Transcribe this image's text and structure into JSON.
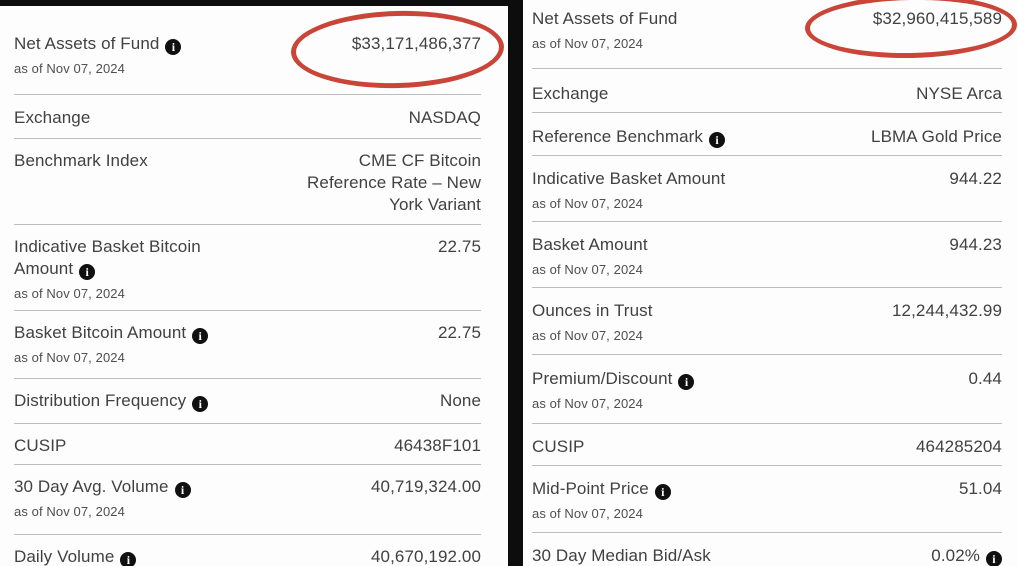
{
  "colors": {
    "annotation_red": "#c94537",
    "divider_black": "#0d0d0d",
    "rule_gray": "#bdbdbd",
    "text_dark": "#414143"
  },
  "panels": [
    {
      "name": "bitcoin-fund-facts",
      "rows": [
        {
          "label": "Net Assets of Fund",
          "info": true,
          "asof": "as of Nov 07, 2024",
          "value_lines": [
            "$33,171,486,377"
          ],
          "circled": true
        },
        {
          "label": "Exchange",
          "info": false,
          "asof": "",
          "value_lines": [
            "NASDAQ"
          ]
        },
        {
          "label": "Benchmark Index",
          "info": false,
          "asof": "",
          "value_lines": [
            "CME CF Bitcoin",
            "Reference Rate – New",
            "York Variant"
          ]
        },
        {
          "label": "Indicative Basket Bitcoin Amount",
          "info": true,
          "asof": "as of Nov 07, 2024",
          "value_lines": [
            "22.75"
          ]
        },
        {
          "label": "Basket Bitcoin Amount",
          "info": true,
          "asof": "as of Nov 07, 2024",
          "value_lines": [
            "22.75"
          ]
        },
        {
          "label": "Distribution Frequency",
          "info": true,
          "asof": "",
          "value_lines": [
            "None"
          ]
        },
        {
          "label": "CUSIP",
          "info": false,
          "asof": "",
          "value_lines": [
            "46438F101"
          ]
        },
        {
          "label": "30 Day Avg. Volume",
          "info": true,
          "asof": "as of Nov 07, 2024",
          "value_lines": [
            "40,719,324.00"
          ]
        },
        {
          "label": "Daily Volume",
          "info": true,
          "asof": "",
          "value_lines": [
            "40,670,192.00"
          ],
          "last": true
        }
      ]
    },
    {
      "name": "gold-fund-facts",
      "rows": [
        {
          "label": "Net Assets of Fund",
          "info": false,
          "asof": "as of Nov 07, 2024",
          "value_lines": [
            "$32,960,415,589"
          ],
          "circled": true
        },
        {
          "label": "Exchange",
          "info": false,
          "asof": "",
          "value_lines": [
            "NYSE Arca"
          ]
        },
        {
          "label": "Reference Benchmark",
          "info": true,
          "asof": "",
          "value_lines": [
            "LBMA Gold Price"
          ]
        },
        {
          "label": "Indicative Basket Amount",
          "info": false,
          "asof": "as of Nov 07, 2024",
          "value_lines": [
            "944.22"
          ]
        },
        {
          "label": "Basket Amount",
          "info": false,
          "asof": "as of Nov 07, 2024",
          "value_lines": [
            "944.23"
          ]
        },
        {
          "label": "Ounces in Trust",
          "info": false,
          "asof": "as of Nov 07, 2024",
          "value_lines": [
            "12,244,432.99"
          ]
        },
        {
          "label": "Premium/Discount",
          "info": true,
          "asof": "as of Nov 07, 2024",
          "value_lines": [
            "0.44"
          ]
        },
        {
          "label": "CUSIP",
          "info": false,
          "asof": "",
          "value_lines": [
            "464285204"
          ]
        },
        {
          "label": "Mid-Point Price",
          "info": true,
          "asof": "as of Nov 07, 2024",
          "value_lines": [
            "51.04"
          ]
        },
        {
          "label": "30 Day Median Bid/Ask",
          "info": false,
          "value_info": true,
          "asof": "",
          "value_lines": [
            "0.02%"
          ],
          "last": true
        }
      ]
    }
  ]
}
